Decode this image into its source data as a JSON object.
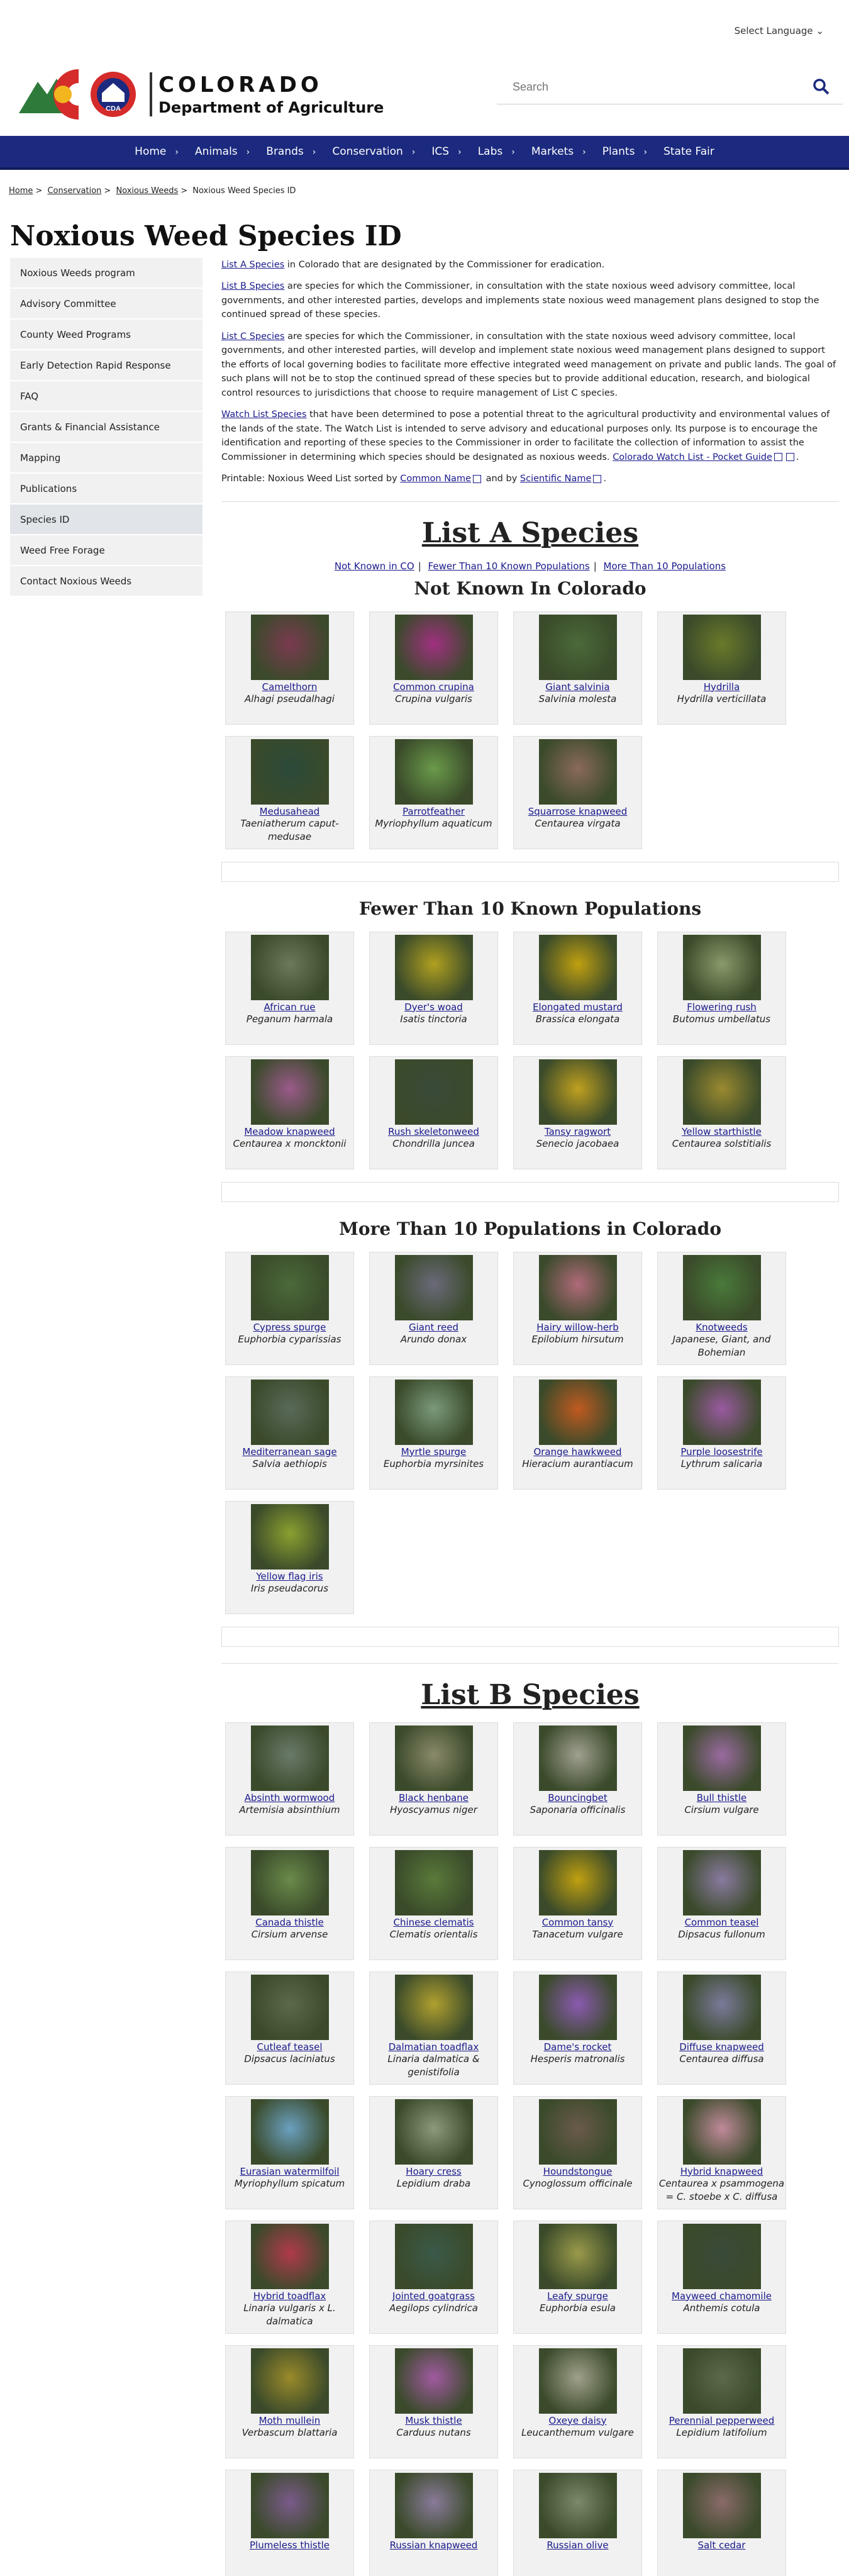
{
  "header": {
    "language": "Select Language",
    "logo_line1": "COLORADO",
    "logo_line2": "Department of Agriculture",
    "logo_badge": "CDA",
    "search_placeholder": "Search"
  },
  "nav": [
    "Home",
    "Animals",
    "Brands",
    "Conservation",
    "ICS",
    "Labs",
    "Markets",
    "Plants",
    "State Fair"
  ],
  "breadcrumb": {
    "home": "Home",
    "conservation": "Conservation",
    "noxious": "Noxious Weeds",
    "current": "Noxious Weed Species ID"
  },
  "page_title": "Noxious Weed Species ID",
  "sidebar": [
    "Noxious Weeds program",
    "Advisory Committee",
    "County Weed Programs",
    "Early Detection Rapid Response",
    "FAQ",
    "Grants & Financial Assistance",
    "Mapping",
    "Publications",
    "Species ID",
    "Weed Free Forage",
    "Contact Noxious Weeds"
  ],
  "intro": {
    "a_link": "List A Species",
    "a_text": " in Colorado that are designated by the Commissioner for eradication.",
    "b_link": "List B Species",
    "b_text": " are species for which the Commissioner, in consultation with the state noxious weed advisory committee, local governments, and other interested parties, develops and implements state noxious weed management plans designed to stop the continued spread of these species.",
    "c_link": "List C Species",
    "c_text": " are species for which the Commissioner, in consultation with the state noxious weed advisory committee, local governments, and other interested parties, will develop and implement state noxious weed management plans designed to support the efforts of local governing bodies to facilitate more effective integrated weed management on private and public lands. The goal of such plans will not be to stop the continued spread of these species but to provide additional education, research, and biological control resources to jurisdictions that choose to require management of List C species.",
    "w_link": "Watch List Species",
    "w_text": " that have been determined to pose a potential threat to the agricultural productivity and environmental values of the lands of the state. The Watch List is intended to serve advisory and educational purposes only. Its purpose is to encourage the identification and reporting of these species to the Commissioner in order to facilitate the collection of information to assist the Commissioner in determining which species should be designated as noxious weeds. ",
    "w_link2": "Colorado Watch List - Pocket Guide",
    "printable": "Printable: Noxious Weed List sorted by ",
    "common": "Common Name",
    "and_by": " and by ",
    "scientific": "Scientific Name",
    "dot": "."
  },
  "list_a": {
    "title": "List A Species",
    "subnav": [
      "Not Known in CO",
      "Fewer Than 10 Known Populations",
      "More Than 10 Populations"
    ],
    "sections": [
      {
        "title": "Not Known In Colorado",
        "items": [
          {
            "name": "Camelthorn",
            "sci": "Alhagi pseudalhagi",
            "color": "#7a3a50"
          },
          {
            "name": "Common crupina",
            "sci": "Crupina vulgaris",
            "color": "#a03080"
          },
          {
            "name": "Giant salvinia",
            "sci": "Salvinia molesta",
            "color": "#4a6a3a"
          },
          {
            "name": "Hydrilla",
            "sci": "Hydrilla verticillata",
            "color": "#6a7a2a"
          },
          {
            "name": "Medusahead",
            "sci": "Taeniatherum caput-medusae",
            "color": "#2a4a3a"
          },
          {
            "name": "Parrotfeather",
            "sci": "Myriophyllum aquaticum",
            "color": "#6a9a4a"
          },
          {
            "name": "Squarrose knapweed",
            "sci": "Centaurea virgata",
            "color": "#8a6a5a"
          }
        ]
      },
      {
        "title": "Fewer Than 10 Known Populations",
        "items": [
          {
            "name": "African rue",
            "sci": "Peganum harmala",
            "color": "#6a7a5a"
          },
          {
            "name": "Dyer's woad",
            "sci": "Isatis tinctoria",
            "color": "#b0a020"
          },
          {
            "name": "Elongated mustard",
            "sci": "Brassica elongata",
            "color": "#c0a010"
          },
          {
            "name": "Flowering rush",
            "sci": "Butomus umbellatus",
            "color": "#8a9a6a"
          },
          {
            "name": "Meadow knapweed",
            "sci": "Centaurea x moncktonii",
            "color": "#9a5a8a"
          },
          {
            "name": "Rush skeletonweed",
            "sci": "Chondrilla juncea",
            "color": "#3a4a3a"
          },
          {
            "name": "Tansy ragwort",
            "sci": "Senecio jacobaea",
            "color": "#c0a020"
          },
          {
            "name": "Yellow starthistle",
            "sci": "Centaurea solstitialis",
            "color": "#9a8a30"
          }
        ]
      },
      {
        "title": "More Than 10 Populations in Colorado",
        "items": [
          {
            "name": "Cypress spurge",
            "sci": "Euphorbia cyparissias",
            "color": "#4a6a3a"
          },
          {
            "name": "Giant reed",
            "sci": "Arundo donax",
            "color": "#6a6a7a"
          },
          {
            "name": "Hairy willow-herb",
            "sci": "Epilobium hirsutum",
            "color": "#b06a7a"
          },
          {
            "name": "Knotweeds",
            "sci": "Japanese, Giant, and Bohemian",
            "color": "#4a7a3a"
          },
          {
            "name": "Mediterranean sage",
            "sci": "Salvia aethiopis",
            "color": "#5a6a5a"
          },
          {
            "name": "Myrtle spurge",
            "sci": "Euphorbia myrsinites",
            "color": "#7a9a7a"
          },
          {
            "name": "Orange hawkweed",
            "sci": "Hieracium aurantiacum",
            "color": "#c05a20"
          },
          {
            "name": "Purple loosestrife",
            "sci": "Lythrum salicaria",
            "color": "#9a5aa0"
          },
          {
            "name": "Yellow flag iris",
            "sci": "Iris pseudacorus",
            "color": "#8aa030"
          }
        ]
      }
    ]
  },
  "list_b": {
    "title": "List B Species",
    "items": [
      {
        "name": "Absinth wormwood",
        "sci": "Artemisia absinthium",
        "color": "#6a7a6a"
      },
      {
        "name": "Black henbane",
        "sci": "Hyoscyamus niger",
        "color": "#8a8a6a"
      },
      {
        "name": "Bouncingbet",
        "sci": "Saponaria officinalis",
        "color": "#a0a090"
      },
      {
        "name": "Bull thistle",
        "sci": "Cirsium vulgare",
        "color": "#9a6aa0"
      },
      {
        "name": "Canada thistle",
        "sci": "Cirsium arvense",
        "color": "#6a8a4a"
      },
      {
        "name": "Chinese clematis",
        "sci": "Clematis orientalis",
        "color": "#5a7a3a"
      },
      {
        "name": "Common tansy",
        "sci": "Tanacetum vulgare",
        "color": "#c0a010"
      },
      {
        "name": "Common teasel",
        "sci": "Dipsacus fullonum",
        "color": "#8a7aa0"
      },
      {
        "name": "Cutleaf teasel",
        "sci": "Dipsacus laciniatus",
        "color": "#5a6a4a"
      },
      {
        "name": "Dalmatian toadflax",
        "sci": "Linaria dalmatica & genistifolia",
        "color": "#b0a030"
      },
      {
        "name": "Dame's rocket",
        "sci": "Hesperis matronalis",
        "color": "#8a5ab0"
      },
      {
        "name": "Diffuse knapweed",
        "sci": "Centaurea diffusa",
        "color": "#7a7a9a"
      },
      {
        "name": "Eurasian watermilfoil",
        "sci": "Myriophyllum spicatum",
        "color": "#6aa0c0"
      },
      {
        "name": "Hoary cress",
        "sci": "Lepidium draba",
        "color": "#8a9a7a"
      },
      {
        "name": "Houndstongue",
        "sci": "Cynoglossum officinale",
        "color": "#6a5a4a"
      },
      {
        "name": "Hybrid knapweed",
        "sci": "Centaurea x psammogena = C. stoebe x C. diffusa",
        "color": "#c08a9a"
      },
      {
        "name": "Hybrid toadflax",
        "sci": "Linaria vulgaris x L. dalmatica",
        "color": "#b03a4a"
      },
      {
        "name": "Jointed goatgrass",
        "sci": "Aegilops cylindrica",
        "color": "#3a5a4a"
      },
      {
        "name": "Leafy spurge",
        "sci": "Euphorbia esula",
        "color": "#9a9a4a"
      },
      {
        "name": "Mayweed chamomile",
        "sci": "Anthemis cotula",
        "color": "#3a4a3a"
      },
      {
        "name": "Moth mullein",
        "sci": "Verbascum blattaria",
        "color": "#9a8a2a"
      },
      {
        "name": "Musk thistle",
        "sci": "Carduus nutans",
        "color": "#a05aa0"
      },
      {
        "name": "Oxeye daisy",
        "sci": "Leucanthemum vulgare",
        "color": "#a0a08a"
      },
      {
        "name": "Perennial pepperweed",
        "sci": "Lepidium latifolium",
        "color": "#5a6a4a"
      },
      {
        "name": "Plumeless thistle",
        "sci": "",
        "color": "#7a5a8a"
      },
      {
        "name": "Russian knapweed",
        "sci": "",
        "color": "#8a7a9a"
      },
      {
        "name": "Russian olive",
        "sci": "",
        "color": "#7a8a6a"
      },
      {
        "name": "Salt cedar",
        "sci": "",
        "color": "#8a6a6a"
      }
    ]
  }
}
